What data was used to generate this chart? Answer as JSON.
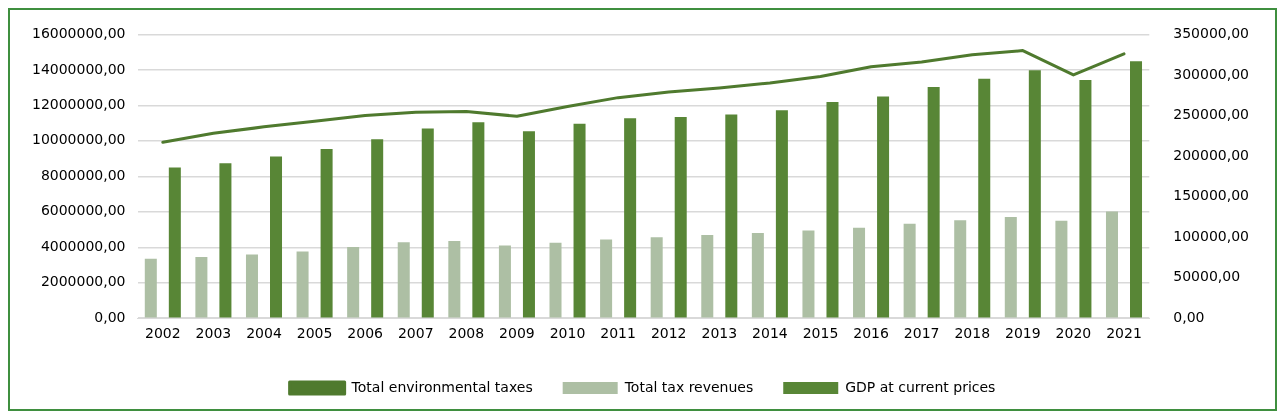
{
  "chart_data": {
    "type": "bar",
    "categories": [
      "2002",
      "2003",
      "2004",
      "2005",
      "2006",
      "2007",
      "2008",
      "2009",
      "2010",
      "2011",
      "2012",
      "2013",
      "2014",
      "2015",
      "2016",
      "2017",
      "2018",
      "2019",
      "2020",
      "2021"
    ],
    "series": [
      {
        "name": "Total tax revenues",
        "color": "#adbfa4",
        "values": [
          3350000,
          3450000,
          3590000,
          3760000,
          4020000,
          4280000,
          4350000,
          4100000,
          4260000,
          4430000,
          4570000,
          4690000,
          4800000,
          4950000,
          5100000,
          5330000,
          5520000,
          5700000,
          5500000,
          6020000
        ]
      },
      {
        "name": "GDP at current prices",
        "color": "#588636",
        "values": [
          8490000,
          8730000,
          9120000,
          9540000,
          10090000,
          10700000,
          11050000,
          10540000,
          10960000,
          11270000,
          11350000,
          11490000,
          11730000,
          12190000,
          12500000,
          13030000,
          13500000,
          13980000,
          13430000,
          14480000
        ]
      },
      {
        "name": "Total environmental taxes",
        "type": "line",
        "axis": "y2",
        "color": "#4f7a2e",
        "values": [
          217000,
          228000,
          236000,
          243000,
          250000,
          254000,
          255000,
          249000,
          261000,
          272000,
          279000,
          284000,
          290000,
          298000,
          310000,
          316000,
          325000,
          330000,
          300000,
          326000
        ]
      }
    ],
    "ylim": [
      0,
      16000000
    ],
    "yticks": [
      {
        "value": 0,
        "label": "0,00"
      },
      {
        "value": 2000000,
        "label": "2000000,00"
      },
      {
        "value": 4000000,
        "label": "4000000,00"
      },
      {
        "value": 6000000,
        "label": "6000000,00"
      },
      {
        "value": 8000000,
        "label": "8000000,00"
      },
      {
        "value": 10000000,
        "label": "10000000,00"
      },
      {
        "value": 12000000,
        "label": "12000000,00"
      },
      {
        "value": 14000000,
        "label": "14000000,00"
      },
      {
        "value": 16000000,
        "label": "16000000,00"
      }
    ],
    "y2lim": [
      0,
      350000
    ],
    "y2ticks": [
      {
        "value": 0,
        "label": "0,00"
      },
      {
        "value": 50000,
        "label": "50000,00"
      },
      {
        "value": 100000,
        "label": "100000,00"
      },
      {
        "value": 150000,
        "label": "150000,00"
      },
      {
        "value": 200000,
        "label": "200000,00"
      },
      {
        "value": 250000,
        "label": "250000,00"
      },
      {
        "value": 300000,
        "label": "300000,00"
      },
      {
        "value": 350000,
        "label": "350000,00"
      }
    ],
    "grid": "y",
    "legend": "bottom",
    "marker": "none"
  }
}
